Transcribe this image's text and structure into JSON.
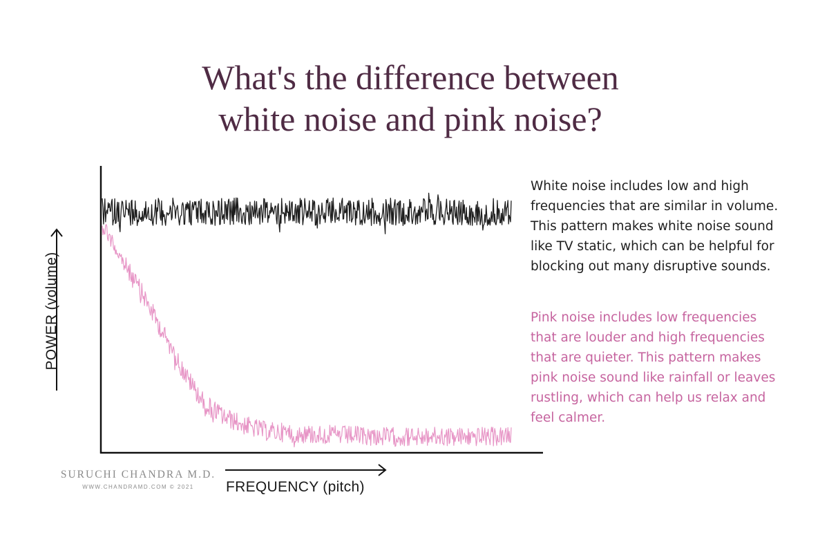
{
  "title": {
    "line1": "What's the difference between",
    "line2": "white noise and pink noise?"
  },
  "description": {
    "white_noise": "White noise includes low and high frequencies that are similar in volume. This pattern makes white noise sound like TV static, which can be helpful for blocking out many disruptive sounds.",
    "pink_noise": "Pink noise includes low frequencies that are louder and high frequencies that are quieter. This pattern makes pink noise sound like rainfall or leaves rustling, which can help us relax and feel calmer."
  },
  "branding": {
    "name": "SURUCHI CHANDRA M.D.",
    "url_line": "WWW.CHANDRAMD.COM © 2021"
  },
  "colors": {
    "title": "#4f2b44",
    "white_noise_series": "#111111",
    "pink_noise_series": "#e48ac0",
    "pink_text": "#c6649f",
    "axis": "#111111"
  },
  "chart_data": {
    "type": "line",
    "xlabel": "FREQUENCY (pitch)",
    "ylabel": "POWER (volume)",
    "x_ticks": "none",
    "y_ticks": "none",
    "grid": false,
    "xlim": [
      0,
      1
    ],
    "ylim": [
      0,
      1
    ],
    "series": [
      {
        "color": "#111111",
        "description_note": "flat level with rapid fluctuation",
        "x": [
          0,
          0.1,
          0.2,
          0.3,
          0.4,
          0.5,
          0.6,
          0.7,
          0.8,
          0.9,
          1.0
        ],
        "values": [
          0.86,
          0.86,
          0.86,
          0.86,
          0.86,
          0.86,
          0.86,
          0.86,
          0.86,
          0.86,
          0.86
        ]
      },
      {
        "color": "#e48ac0",
        "x": [
          0,
          0.05,
          0.1,
          0.15,
          0.2,
          0.25,
          0.3,
          0.35,
          0.4,
          0.5,
          0.6,
          0.7,
          0.8,
          0.9,
          1.0
        ],
        "values": [
          0.82,
          0.68,
          0.56,
          0.42,
          0.28,
          0.17,
          0.12,
          0.09,
          0.07,
          0.06,
          0.055,
          0.05,
          0.05,
          0.05,
          0.05
        ]
      }
    ]
  }
}
